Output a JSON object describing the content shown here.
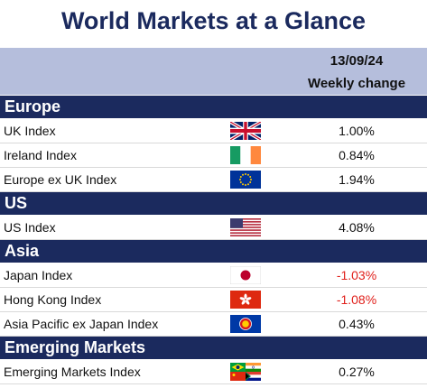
{
  "title": "World Markets at a Glance",
  "header": {
    "date": "13/09/24",
    "change_label": "Weekly change"
  },
  "sections": [
    {
      "name": "Europe",
      "rows": [
        {
          "label": "UK Index",
          "flag": "uk-flag-icon",
          "value": "1.00%",
          "negative": false
        },
        {
          "label": "Ireland Index",
          "flag": "ireland-flag-icon",
          "value": "0.84%",
          "negative": false
        },
        {
          "label": "Europe ex UK Index",
          "flag": "eu-flag-icon",
          "value": "1.94%",
          "negative": false
        }
      ]
    },
    {
      "name": "US",
      "rows": [
        {
          "label": "US Index",
          "flag": "us-flag-icon",
          "value": "4.08%",
          "negative": false
        }
      ]
    },
    {
      "name": "Asia",
      "rows": [
        {
          "label": "Japan Index",
          "flag": "japan-flag-icon",
          "value": "-1.03%",
          "negative": true
        },
        {
          "label": "Hong Kong Index",
          "flag": "hong-kong-flag-icon",
          "value": "-1.08%",
          "negative": true
        },
        {
          "label": "Asia Pacific ex Japan Index",
          "flag": "asean-flag-icon",
          "value": "0.43%",
          "negative": false
        }
      ]
    },
    {
      "name": "Emerging Markets",
      "rows": [
        {
          "label": "Emerging Markets Index",
          "flag": "emerging-markets-flags-icon",
          "value": "0.27%",
          "negative": false
        }
      ]
    }
  ],
  "colors": {
    "section_bg": "#1b2a5e",
    "header_bg": "#b5bedc",
    "negative": "#e0201b"
  }
}
